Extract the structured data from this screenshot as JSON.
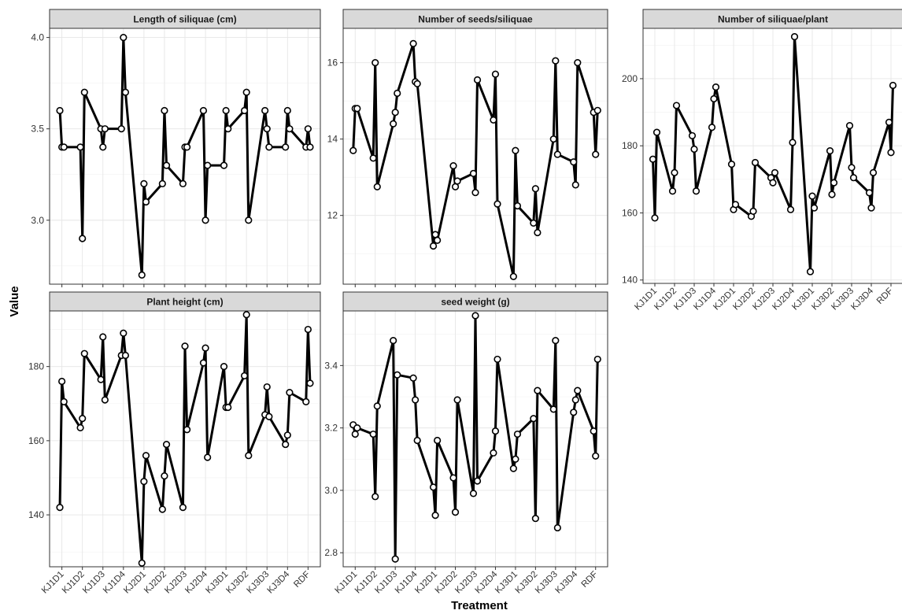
{
  "chart_data": {
    "type": "line",
    "facet_label_style": "strip-top",
    "xlabel": "Treatment",
    "ylabel": "Value",
    "categories": [
      "KJ1D1",
      "KJ1D2",
      "KJ1D3",
      "KJ1D4",
      "KJ2D1",
      "KJ2D2",
      "KJ2D3",
      "KJ2D4",
      "KJ3D1",
      "KJ3D2",
      "KJ3D3",
      "KJ3D4",
      "RDF"
    ],
    "colors": {
      "line": "#000000",
      "point_fill": "#ffffff",
      "strip": "#d9d9d9",
      "grid": "#e6e6e6"
    },
    "panels": [
      {
        "title": "Length of siliquae (cm)",
        "ylim": [
          2.65,
          4.05
        ],
        "yticks": [
          "3.0",
          "3.5",
          "4.0"
        ],
        "show_x_labels": false,
        "values": [
          [
            3.6,
            3.4,
            3.4
          ],
          [
            3.4,
            2.9,
            3.7
          ],
          [
            3.5,
            3.4,
            3.5
          ],
          [
            3.5,
            4.0,
            3.7
          ],
          [
            2.7,
            3.2,
            3.1
          ],
          [
            3.2,
            3.6,
            3.3
          ],
          [
            3.2,
            3.4,
            3.4
          ],
          [
            3.6,
            3.0,
            3.3
          ],
          [
            3.3,
            3.6,
            3.5
          ],
          [
            3.6,
            3.7,
            3.0
          ],
          [
            3.6,
            3.5,
            3.4
          ],
          [
            3.4,
            3.6,
            3.5
          ],
          [
            3.4,
            3.5,
            3.4
          ]
        ]
      },
      {
        "title": "Number of seeds/siliquae",
        "ylim": [
          10.2,
          16.9
        ],
        "yticks": [
          "12",
          "14",
          "16"
        ],
        "show_x_labels": false,
        "values": [
          [
            13.7,
            14.8,
            14.8
          ],
          [
            13.5,
            16.0,
            12.75
          ],
          [
            14.4,
            14.7,
            15.2
          ],
          [
            16.5,
            15.5,
            15.45
          ],
          [
            11.2,
            11.5,
            11.35
          ],
          [
            13.3,
            12.75,
            12.9
          ],
          [
            13.1,
            12.6,
            15.55
          ],
          [
            14.5,
            15.7,
            12.3
          ],
          [
            10.4,
            13.7,
            12.25
          ],
          [
            11.8,
            12.7,
            11.55
          ],
          [
            14.0,
            16.05,
            13.6
          ],
          [
            13.4,
            12.8,
            16.0
          ],
          [
            14.7,
            13.6,
            14.75
          ]
        ]
      },
      {
        "title": "Number of siliquae/plant",
        "ylim": [
          139,
          215
        ],
        "yticks": [
          "140",
          "160",
          "180",
          "200"
        ],
        "show_x_labels": true,
        "values": [
          [
            176,
            158.5,
            184
          ],
          [
            166.5,
            172,
            192
          ],
          [
            183,
            179,
            166.5
          ],
          [
            185.5,
            194,
            197.5
          ],
          [
            174.5,
            161,
            162.5
          ],
          [
            159,
            160.5,
            175
          ],
          [
            170.5,
            169,
            172
          ],
          [
            161,
            181,
            212.5
          ],
          [
            142.5,
            165,
            161.5
          ],
          [
            178.5,
            165.5,
            169
          ],
          [
            186,
            173.5,
            170.5
          ],
          [
            166,
            161.5,
            172
          ],
          [
            187,
            178,
            198
          ]
        ]
      },
      {
        "title": "Plant height (cm)",
        "ylim": [
          126,
          195
        ],
        "yticks": [
          "140",
          "160",
          "180"
        ],
        "show_x_labels": true,
        "values": [
          [
            142,
            176,
            170.5
          ],
          [
            163.5,
            166,
            183.5
          ],
          [
            176.5,
            188,
            171
          ],
          [
            183,
            189,
            183
          ],
          [
            127,
            149,
            156
          ],
          [
            141.5,
            150.5,
            159
          ],
          [
            142,
            185.5,
            163
          ],
          [
            181,
            185,
            155.5
          ],
          [
            180,
            169,
            169
          ],
          [
            177.5,
            194,
            156
          ],
          [
            167,
            174.5,
            166.5
          ],
          [
            159,
            161.5,
            173
          ],
          [
            170.5,
            190,
            175.5
          ]
        ]
      },
      {
        "title": "seed weight (g)",
        "ylim": [
          2.755,
          3.575
        ],
        "yticks": [
          "2.8",
          "3.0",
          "3.2",
          "3.4"
        ],
        "show_x_labels": true,
        "values": [
          [
            3.21,
            3.18,
            3.2
          ],
          [
            3.18,
            2.98,
            3.27
          ],
          [
            3.48,
            2.78,
            3.37
          ],
          [
            3.36,
            3.29,
            3.16
          ],
          [
            3.01,
            2.92,
            3.16
          ],
          [
            3.04,
            2.93,
            3.29
          ],
          [
            2.99,
            3.56,
            3.03
          ],
          [
            3.12,
            3.19,
            3.42
          ],
          [
            3.07,
            3.1,
            3.18
          ],
          [
            3.23,
            2.91,
            3.32
          ],
          [
            3.26,
            3.48,
            2.88
          ],
          [
            3.25,
            3.29,
            3.32
          ],
          [
            3.19,
            3.11,
            3.42
          ]
        ]
      }
    ]
  }
}
